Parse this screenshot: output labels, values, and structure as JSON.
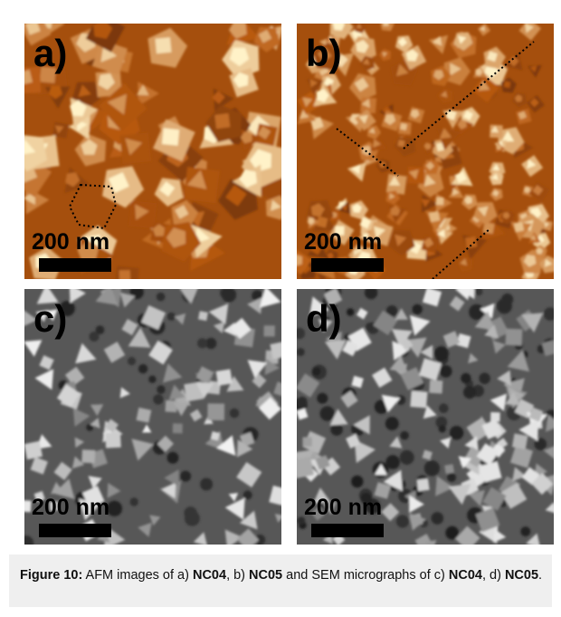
{
  "panels": [
    {
      "label": "a)",
      "scale_label": "200 nm",
      "type": "AFM"
    },
    {
      "label": "b)",
      "scale_label": "200 nm",
      "type": "AFM"
    },
    {
      "label": "c)",
      "scale_label": "200 nm",
      "type": "SEM"
    },
    {
      "label": "d)",
      "scale_label": "200 nm",
      "type": "SEM"
    }
  ],
  "caption": {
    "figure_label": "Figure 10:",
    "text_1": " AFM images of a) ",
    "sample_1": "NC04",
    "text_2": ", b) ",
    "sample_2": "NC05",
    "text_3": " and SEM micrographs of c) ",
    "sample_3": "NC04",
    "text_4": ", d) ",
    "sample_4": "NC05",
    "text_5": "."
  },
  "colors": {
    "afm_dark": "#3a1400",
    "afm_mid": "#b95a10",
    "afm_bright": "#fff2c8",
    "sem_dark": "#141414",
    "sem_bright": "#f2f2f2",
    "caption_bg": "#efefef"
  }
}
